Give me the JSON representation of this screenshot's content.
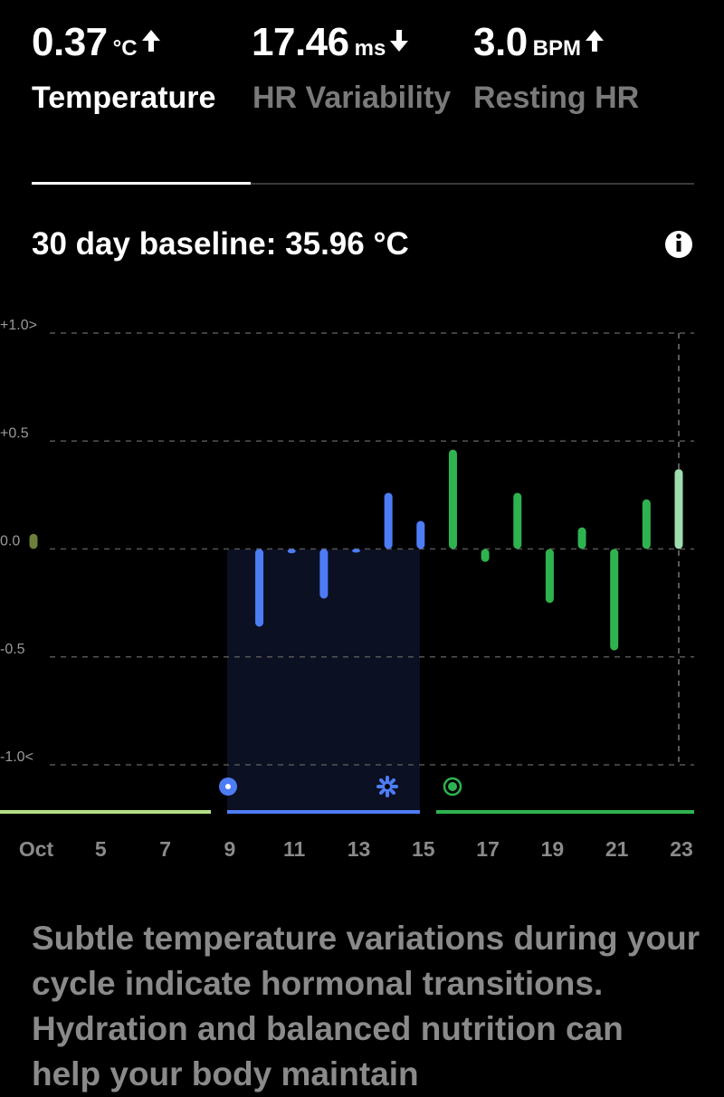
{
  "header": {
    "metrics": [
      {
        "value": "0.37",
        "unit": "°C",
        "label": "Temperature"
      },
      {
        "value": "17.46",
        "unit": "ms",
        "label": "HR Variability"
      },
      {
        "value": "3.0",
        "unit": "BPM",
        "label": "Resting HR"
      }
    ],
    "baseline": "30 day baseline: 35.96 °C"
  },
  "chart_data": {
    "type": "bar",
    "categories": [
      "Oct",
      null,
      "5",
      null,
      "7",
      null,
      "9",
      null,
      "11",
      null,
      "13",
      null,
      "15",
      null,
      "17",
      null,
      "19",
      null,
      "21",
      null,
      "23"
    ],
    "values": [
      0.07,
      null,
      null,
      null,
      null,
      null,
      null,
      -0.36,
      -0.02,
      -0.23,
      -0.01,
      0.26,
      0.13,
      0.46,
      -0.06,
      0.26,
      -0.25,
      0.1,
      -0.47,
      0.23,
      0.37
    ],
    "colors": [
      "#6b7f3a",
      null,
      null,
      null,
      null,
      null,
      null,
      "#4d7cf5",
      "#4d7cf5",
      "#4d7cf5",
      "#4d7cf5",
      "#4d7cf5",
      "#4d7cf5",
      "#2fb350",
      "#2fb350",
      "#2fb350",
      "#2fb350",
      "#2fb350",
      "#2fb350",
      "#2fb350",
      "#9fdcae"
    ],
    "ylim": [
      -1,
      1
    ],
    "yticks": [
      {
        "value": 1,
        "label": "+1.0>"
      },
      {
        "value": 0.5,
        "label": "+0.5"
      },
      {
        "value": 0,
        "label": "0.0"
      },
      {
        "value": -0.5,
        "label": "-0.5"
      },
      {
        "value": -1,
        "label": "-1.0<"
      }
    ],
    "grid": true
  },
  "description": "Subtle temperature variations during your cycle indicate hormonal transitions. Hydration and balanced nutrition can help your body maintain"
}
